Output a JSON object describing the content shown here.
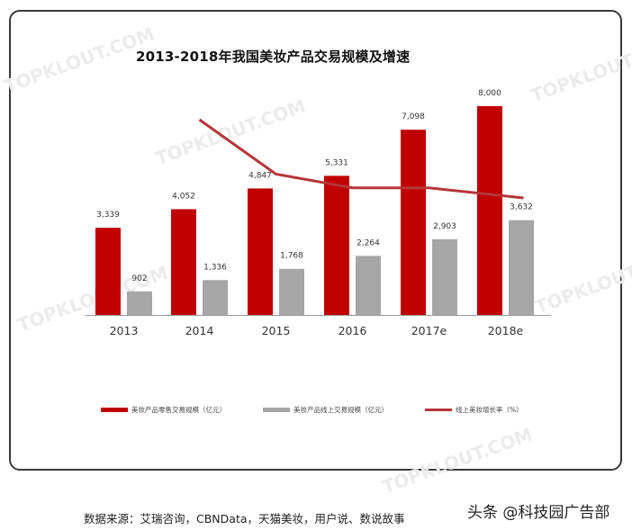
{
  "chart_data": {
    "type": "bar",
    "title": "2013-2018年我国美妆产品交易规模及增速",
    "categories": [
      "2013",
      "2014",
      "2015",
      "2016",
      "2017e",
      "2018e"
    ],
    "series": [
      {
        "name": "美妆产品零售交易规模（亿元）",
        "type": "bar",
        "color": "#c00000",
        "values": [
          3339,
          4052,
          4847,
          5331,
          7098,
          8000
        ],
        "labels": [
          "3,339",
          "4,052",
          "4,847",
          "5,331",
          "7,098",
          "8,000"
        ]
      },
      {
        "name": "美妆产品线上交易规模（亿元）",
        "type": "bar",
        "color": "#a6a6a6",
        "values": [
          902,
          1336,
          1768,
          2264,
          2903,
          3632
        ],
        "labels": [
          "902",
          "1,336",
          "1,768",
          "2,264",
          "2,903",
          "3,632"
        ]
      },
      {
        "name": "线上美妆增长率（%）",
        "type": "line",
        "color": "#b5353a",
        "values": [
          null,
          48,
          32,
          28,
          28,
          25
        ]
      }
    ],
    "xlabel": "",
    "ylabel": "",
    "ylim": [
      0,
      8000
    ],
    "grid": false,
    "legend_position": "bottom"
  },
  "legend": {
    "item1": "美妆产品零售交易规模（亿元）",
    "item2": "美妆产品线上交易规模（亿元）",
    "item3": "线上美妆增长率（%）"
  },
  "footer": {
    "source": "数据来源：艾瑞咨询，CBNData，天猫美妆，用户说、数说故事",
    "credit": "头条 @科技园广告部"
  },
  "watermark": "TOPKLOUT.COM"
}
